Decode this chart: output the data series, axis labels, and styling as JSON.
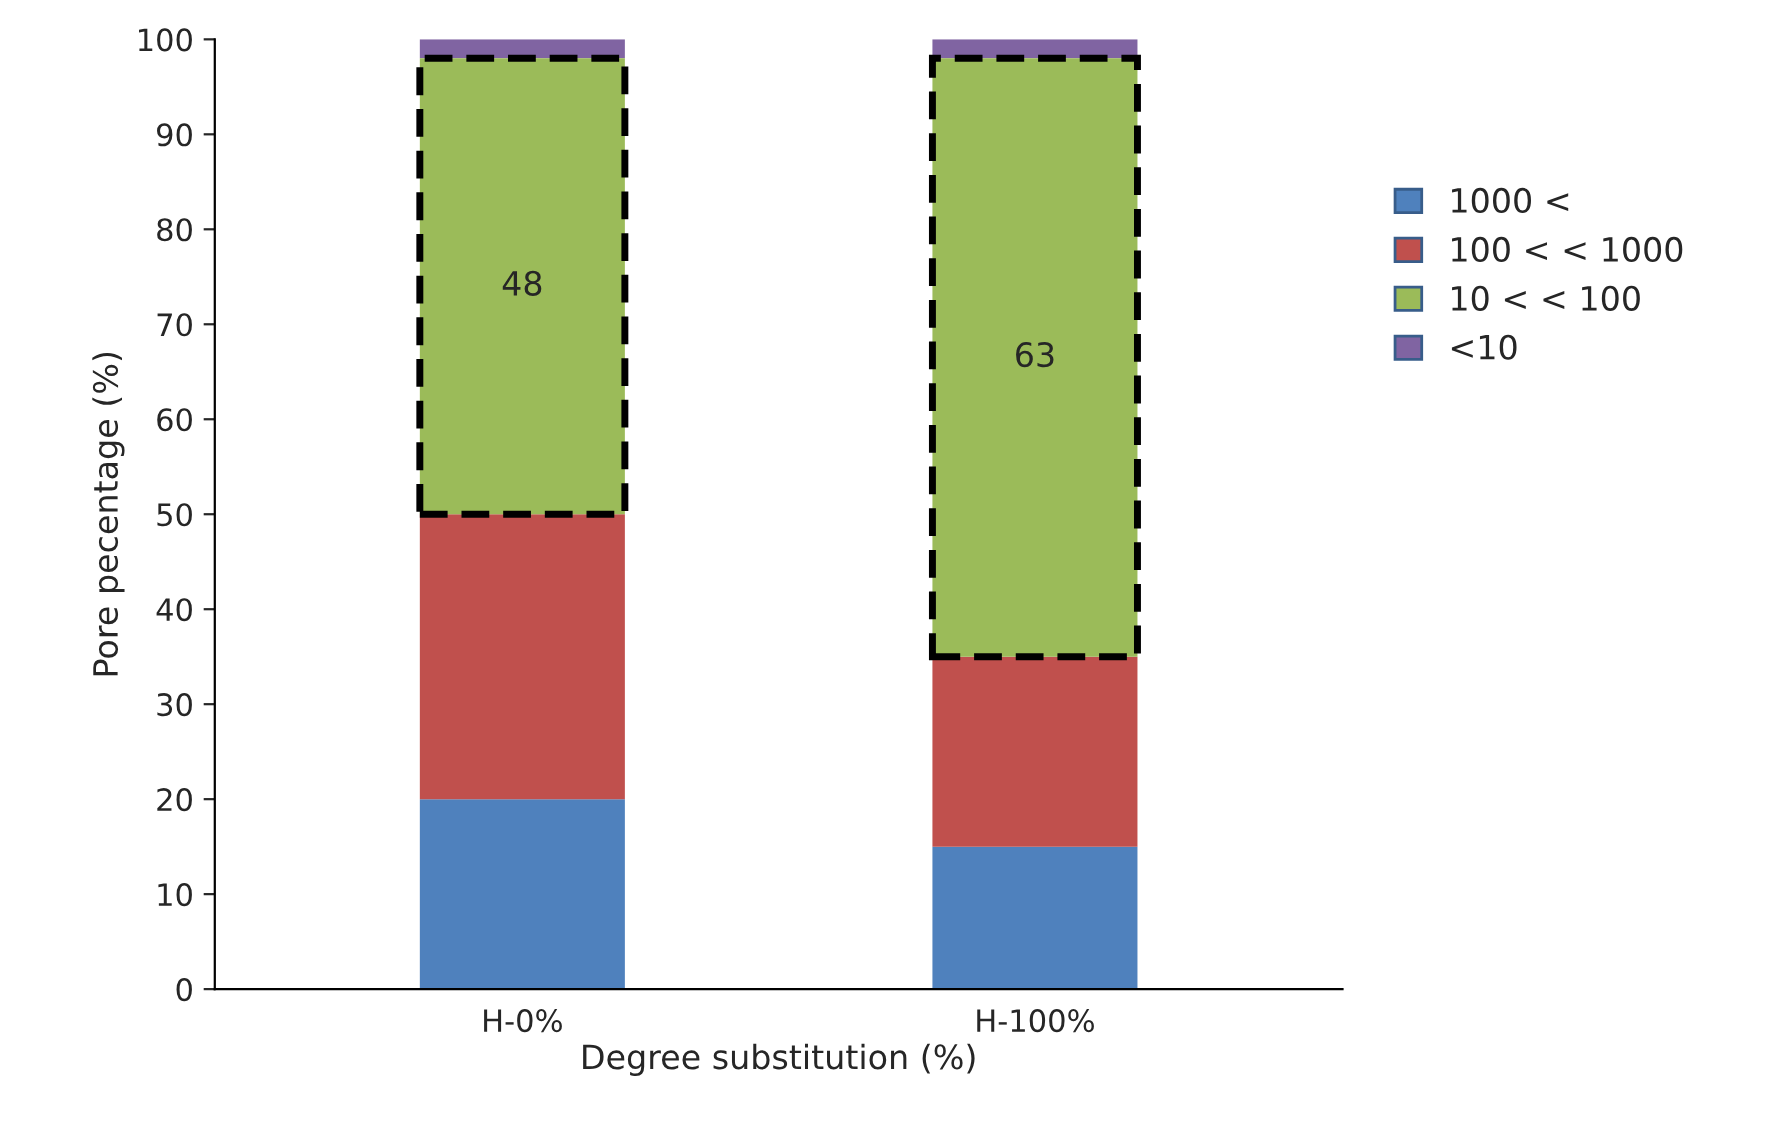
{
  "chart_data": {
    "type": "bar",
    "stacked": true,
    "xlabel": "Degree substitution (%)",
    "ylabel": "Pore pecentage (%)",
    "categories": [
      "H-0%",
      "H-100%"
    ],
    "series": [
      {
        "name": "1000 <",
        "color": "#4f81bd",
        "values": [
          20,
          15
        ]
      },
      {
        "name": "100 < < 1000",
        "color": "#c0504d",
        "values": [
          30,
          20
        ]
      },
      {
        "name": "10 < < 100",
        "color": "#9bbb59",
        "values": [
          48,
          63
        ],
        "value_labels": [
          "48",
          "63"
        ],
        "line_style": "dashed"
      },
      {
        "name": "<10",
        "color": "#8064a2",
        "values": [
          2,
          2
        ]
      }
    ],
    "ylim": [
      0,
      100
    ],
    "yticks": [
      0,
      10,
      20,
      30,
      40,
      50,
      60,
      70,
      80,
      90,
      100
    ],
    "grid": false,
    "legend": "right"
  }
}
